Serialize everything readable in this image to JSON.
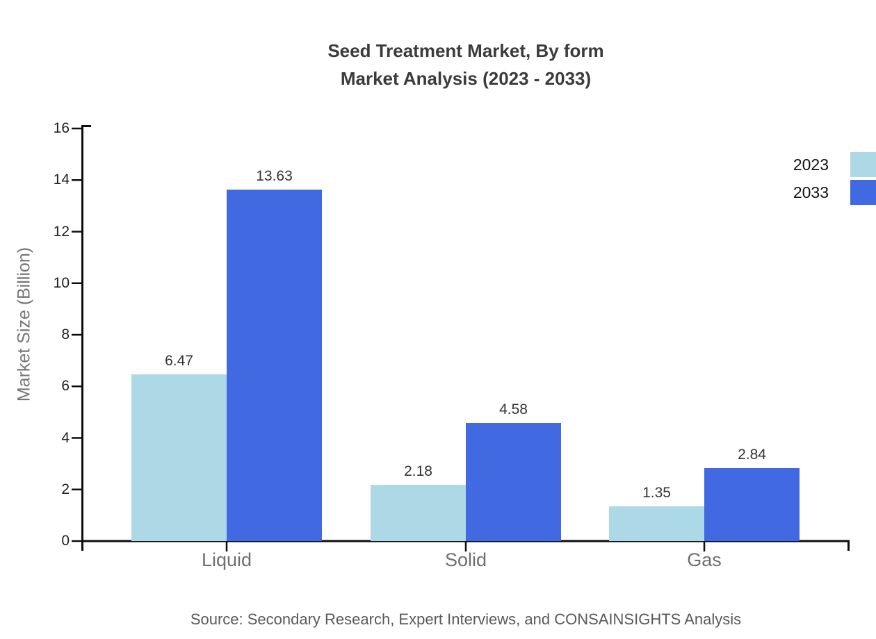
{
  "title": {
    "line1": "Seed Treatment Market, By form",
    "line2": "Market Analysis (2023 - 2033)"
  },
  "source": "Source: Secondary Research, Expert Interviews, and CONSAINSIGHTS Analysis",
  "chart_data": {
    "type": "bar",
    "title": "Seed Treatment Market, By form Market Analysis (2023 - 2033)",
    "categories": [
      "Liquid",
      "Solid",
      "Gas"
    ],
    "series": [
      {
        "name": "2023",
        "color": "#ADD8E6",
        "values": [
          6.47,
          2.18,
          1.35
        ]
      },
      {
        "name": "2033",
        "color": "#4169E1",
        "values": [
          13.63,
          4.58,
          2.84
        ]
      }
    ],
    "xlabel": "",
    "ylabel": "Market Size (Billion)",
    "ylim": [
      0,
      16
    ],
    "y_ticks": [
      0,
      2,
      4,
      6,
      8,
      10,
      12,
      14,
      16
    ],
    "grid": false,
    "legend_position": "top-right",
    "value_labels": true
  }
}
